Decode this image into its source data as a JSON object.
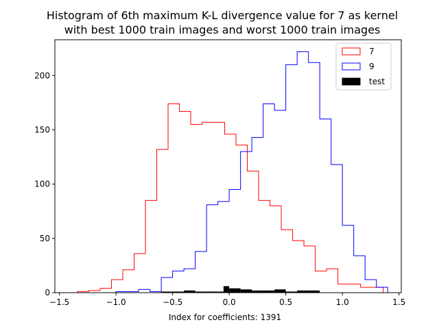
{
  "chart_data": {
    "type": "histogram",
    "title_lines": [
      "Histogram of 6th maximum K-L divergence value for 7 as kernel",
      "with best 1000 train images and worst 1000 train images"
    ],
    "xlabel": "Index for coefficients: 1391",
    "ylabel": "",
    "xlim": [
      -1.54,
      1.52
    ],
    "ylim": [
      0,
      233
    ],
    "x_ticks": [
      -1.5,
      -1.0,
      -0.5,
      0.0,
      0.5,
      1.0,
      1.5
    ],
    "x_tick_labels": [
      "−1.5",
      "−1.0",
      "−0.5",
      "0.0",
      "0.5",
      "1.0",
      "1.5"
    ],
    "y_ticks": [
      0,
      50,
      100,
      150,
      200
    ],
    "y_tick_labels": [
      "0",
      "50",
      "100",
      "150",
      "200"
    ],
    "grid": false,
    "legend_position": "top-right",
    "series": [
      {
        "name": "7",
        "style": "step",
        "color": "#ff0000",
        "bin_edges": [
          -1.44,
          -1.34,
          -1.24,
          -1.14,
          -1.04,
          -0.94,
          -0.84,
          -0.74,
          -0.64,
          -0.54,
          -0.44,
          -0.34,
          -0.24,
          -0.14,
          -0.04,
          0.06,
          0.16,
          0.26,
          0.36,
          0.46,
          0.56,
          0.66,
          0.76,
          0.86,
          0.96,
          1.06,
          1.16,
          1.26,
          1.36
        ],
        "counts": [
          0,
          1,
          2,
          4,
          12,
          21,
          36,
          85,
          132,
          174,
          167,
          155,
          157,
          157,
          146,
          136,
          112,
          85,
          80,
          58,
          48,
          43,
          20,
          22,
          8,
          8,
          5,
          5
        ]
      },
      {
        "name": "9",
        "style": "step",
        "color": "#0000ff",
        "bin_edges": [
          -1.0,
          -0.9,
          -0.8,
          -0.7,
          -0.6,
          -0.5,
          -0.4,
          -0.3,
          -0.2,
          -0.1,
          0.0,
          0.1,
          0.2,
          0.3,
          0.4,
          0.5,
          0.6,
          0.7,
          0.8,
          0.9,
          1.0,
          1.1,
          1.2,
          1.3,
          1.4
        ],
        "counts": [
          1,
          1,
          3,
          1,
          14,
          20,
          22,
          38,
          81,
          84,
          95,
          130,
          143,
          174,
          168,
          210,
          222,
          212,
          160,
          118,
          62,
          34,
          12,
          5
        ]
      },
      {
        "name": "test",
        "style": "filled",
        "color": "#000000",
        "bin_edges": [
          -0.6,
          -0.5,
          -0.4,
          -0.3,
          -0.2,
          -0.1,
          -0.05,
          0.0,
          0.05,
          0.1,
          0.2,
          0.3,
          0.4,
          0.5,
          0.6,
          0.7,
          0.8
        ],
        "counts": [
          1,
          1,
          2,
          1,
          1,
          1,
          6,
          4,
          4,
          3,
          2,
          2,
          3,
          1,
          2,
          2
        ]
      }
    ]
  }
}
